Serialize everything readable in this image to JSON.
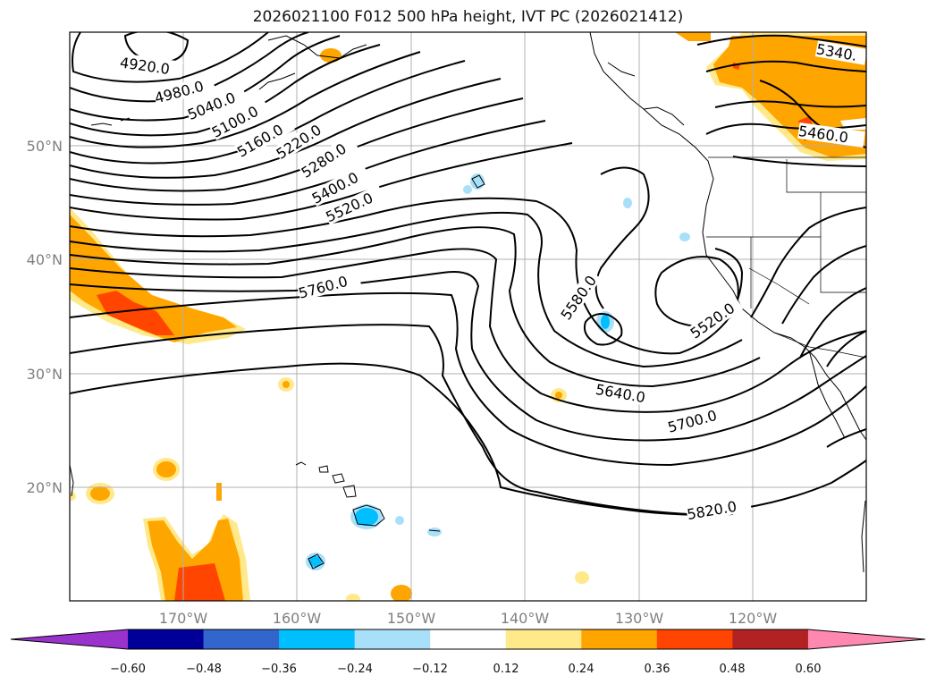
{
  "title": "2026021100 F012 500 hPa height, IVT PC (2026021412)",
  "lat_labels": [
    "50°N",
    "40°N",
    "30°N",
    "20°N"
  ],
  "lon_labels": [
    "170°W",
    "160°W",
    "150°W",
    "140°W",
    "130°W",
    "120°W"
  ],
  "contour_labels": [
    "4920.0",
    "4980.0",
    "5040.0",
    "5100.0",
    "5160.0",
    "5220.0",
    "5280.0",
    "5400.0",
    "5520.0",
    "5760.0",
    "5580.0",
    "5520.0",
    "5640.0",
    "5700.0",
    "5820.0",
    "5340.",
    "5460.0"
  ],
  "colorbar": {
    "ticks": [
      "−0.60",
      "−0.48",
      "−0.36",
      "−0.24",
      "−0.12",
      "0.12",
      "0.24",
      "0.36",
      "0.48",
      "0.60"
    ],
    "colors": [
      "#9933cc",
      "#000099",
      "#3366cc",
      "#00bfff",
      "#a8e0fa",
      "#ffffff",
      "#ffe98a",
      "#ffa500",
      "#ff4500",
      "#b22222",
      "#ff88b0"
    ]
  },
  "colors": {
    "contour": "#000000",
    "grid": "#b0b0b0",
    "coast": "#000000"
  }
}
